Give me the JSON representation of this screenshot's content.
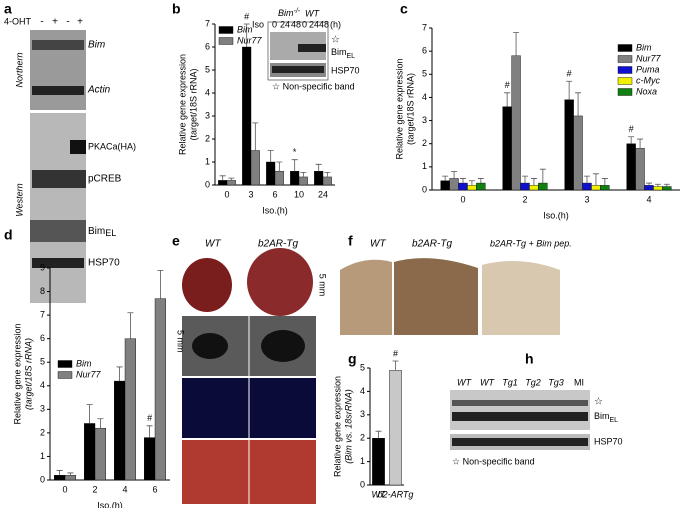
{
  "panel_a": {
    "label": "a",
    "treatment_label": "4-OHT",
    "treatment": [
      "-",
      "+",
      "-",
      "+"
    ],
    "sections": [
      "Northern",
      "Western"
    ],
    "bands": [
      "Bim",
      "Actin",
      "PKACa(HA)",
      "pCREB",
      {
        "base": "Bim",
        "sub": "EL"
      },
      "HSP70"
    ]
  },
  "panel_b_inset": {
    "groups": [
      {
        "base": "Bim",
        "sup": "-/-"
      },
      "WT"
    ],
    "time_header": "Iso",
    "times": [
      "0",
      "24",
      "48",
      "0",
      "24",
      "48"
    ],
    "unit": "(h)",
    "star": "☆",
    "bands": [
      {
        "base": "Bim",
        "sub": "EL"
      },
      "HSP70"
    ],
    "note": "☆ Non-specific band"
  },
  "panel_e": {
    "label": "e",
    "groups": [
      "WT",
      "b2AR-Tg"
    ],
    "scale": "5 mm"
  },
  "panel_f": {
    "label": "f",
    "groups": [
      "WT",
      "b2AR-Tg",
      "b2AR-Tg + Bim pep."
    ]
  },
  "panel_h": {
    "label": "h",
    "lanes": [
      "WT",
      "WT",
      "Tg1",
      "Tg2",
      "Tg3",
      "MI"
    ],
    "star": "☆",
    "bands": [
      {
        "base": "Bim",
        "sub": "EL"
      },
      "HSP70"
    ],
    "note": "☆ Non-specific band"
  },
  "chart_data": [
    {
      "type": "bar",
      "label": "b",
      "ylabel": [
        "Relative gene expression",
        "(target/18S rRNA)"
      ],
      "xlabel": "Iso.(h)",
      "categories": [
        "0",
        "3",
        "6",
        "10",
        "24"
      ],
      "ylim": [
        0,
        7
      ],
      "yticks": [
        0,
        1,
        2,
        3,
        4,
        5,
        6,
        7
      ],
      "legend": "upper left",
      "series": [
        {
          "name": "Bim",
          "color": "#000000",
          "values": [
            0.2,
            6.0,
            1.0,
            0.6,
            0.6
          ],
          "errors": [
            0.2,
            1.0,
            0.5,
            0.5,
            0.3
          ],
          "annotations": [
            null,
            "#",
            null,
            "*",
            null
          ]
        },
        {
          "name": "Nur77",
          "color": "#808080",
          "values": [
            0.2,
            1.5,
            0.6,
            0.35,
            0.35
          ],
          "errors": [
            0.1,
            1.2,
            0.4,
            0.2,
            0.2
          ]
        }
      ]
    },
    {
      "type": "bar",
      "label": "c",
      "ylabel": [
        "Relative gene expression",
        "(target/18S rRNA)"
      ],
      "xlabel": "Iso.(h)",
      "categories": [
        "0",
        "2",
        "3",
        "4"
      ],
      "ylim": [
        0,
        7
      ],
      "yticks": [
        0,
        1,
        2,
        3,
        4,
        5,
        6,
        7
      ],
      "legend": "upper right",
      "series": [
        {
          "name": "Bim",
          "color": "#000000",
          "values": [
            0.4,
            3.6,
            3.9,
            2.0
          ],
          "errors": [
            0.2,
            0.6,
            0.8,
            0.3
          ],
          "annotations": [
            null,
            "#",
            "#",
            "#"
          ]
        },
        {
          "name": "Nur77",
          "color": "#808080",
          "values": [
            0.5,
            5.8,
            3.2,
            1.8
          ],
          "errors": [
            0.3,
            1.0,
            1.0,
            0.4
          ]
        },
        {
          "name": "Puma",
          "color": "#1010d0",
          "values": [
            0.3,
            0.3,
            0.3,
            0.2
          ],
          "errors": [
            0.2,
            0.3,
            0.3,
            0.1
          ]
        },
        {
          "name": "c-Myc",
          "color": "#f0f000",
          "values": [
            0.2,
            0.2,
            0.2,
            0.15
          ],
          "errors": [
            0.2,
            0.3,
            0.5,
            0.1
          ]
        },
        {
          "name": "Noxa",
          "color": "#108010",
          "values": [
            0.3,
            0.3,
            0.2,
            0.15
          ],
          "errors": [
            0.2,
            0.6,
            0.3,
            0.1
          ]
        }
      ]
    },
    {
      "type": "bar",
      "label": "d",
      "ylabel": [
        "Relative gene expression",
        "(target/18S rRNA)"
      ],
      "xlabel": "Iso.(h)",
      "categories": [
        "0",
        "2",
        "4",
        "6"
      ],
      "ylim": [
        0,
        9
      ],
      "yticks": [
        0,
        1,
        2,
        3,
        4,
        5,
        6,
        7,
        8,
        9
      ],
      "legend": "center left",
      "series": [
        {
          "name": "Bim",
          "color": "#000000",
          "values": [
            0.2,
            2.4,
            4.2,
            1.8
          ],
          "errors": [
            0.2,
            0.8,
            0.6,
            0.5
          ],
          "annotations": [
            null,
            null,
            null,
            "#"
          ]
        },
        {
          "name": "Nur77",
          "color": "#808080",
          "values": [
            0.2,
            2.2,
            6.0,
            7.7
          ],
          "errors": [
            0.1,
            0.4,
            1.1,
            1.2
          ]
        }
      ]
    },
    {
      "type": "bar",
      "label": "g",
      "ylabel": [
        "Relative gene expression",
        "(Bim vs. 18srRNA)"
      ],
      "categories": [
        "WT",
        "b2-ARTg"
      ],
      "ylim": [
        0,
        5
      ],
      "yticks": [
        0,
        1,
        2,
        3,
        4,
        5
      ],
      "values": [
        2.0,
        4.9
      ],
      "errors": [
        0.3,
        0.4
      ],
      "colors": [
        "#000000",
        "#c8c8c8"
      ],
      "annotations": [
        null,
        "#"
      ]
    }
  ]
}
